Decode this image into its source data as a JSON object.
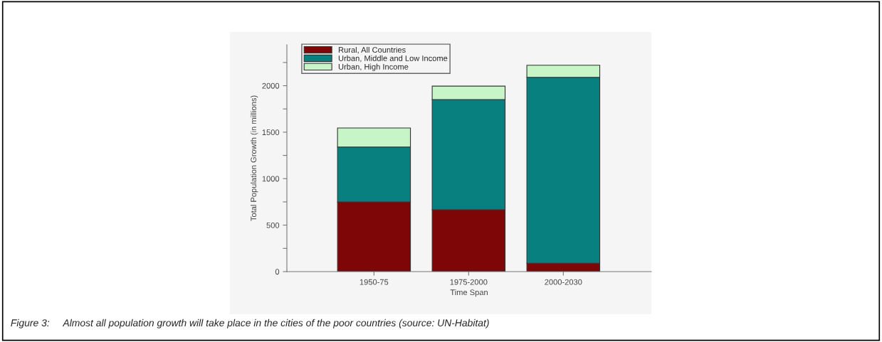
{
  "chart_data": {
    "type": "bar",
    "stacked": true,
    "categories": [
      "1950-75",
      "1975-2000",
      "2000-2030"
    ],
    "xlabel": "Time Span",
    "ylabel": "Total Population Growth (in millions)",
    "series": [
      {
        "name": "Rural, All Countries",
        "color": "#7f0606",
        "values": [
          750,
          665,
          90
        ]
      },
      {
        "name": "Urban, Middle and Low Income",
        "color": "#088080",
        "values": [
          590,
          1185,
          2000
        ]
      },
      {
        "name": "Urban, High Income",
        "color": "#c8f5c8",
        "values": [
          205,
          145,
          130
        ]
      }
    ],
    "ylim": [
      0,
      2440
    ],
    "yticks": [
      0,
      {
        "value": 250,
        "label": null
      },
      500,
      {
        "value": 750,
        "label": null
      },
      1000,
      {
        "value": 1250,
        "label": null
      },
      1500,
      {
        "value": 1750,
        "label": null
      },
      2000,
      {
        "value": 2250,
        "label": null
      }
    ],
    "grid": false,
    "legend": "top left",
    "annotations": [
      "Figure 3:     Almost all population growth will take place in the cities of the poor countries (source: UN-Habitat)"
    ]
  }
}
